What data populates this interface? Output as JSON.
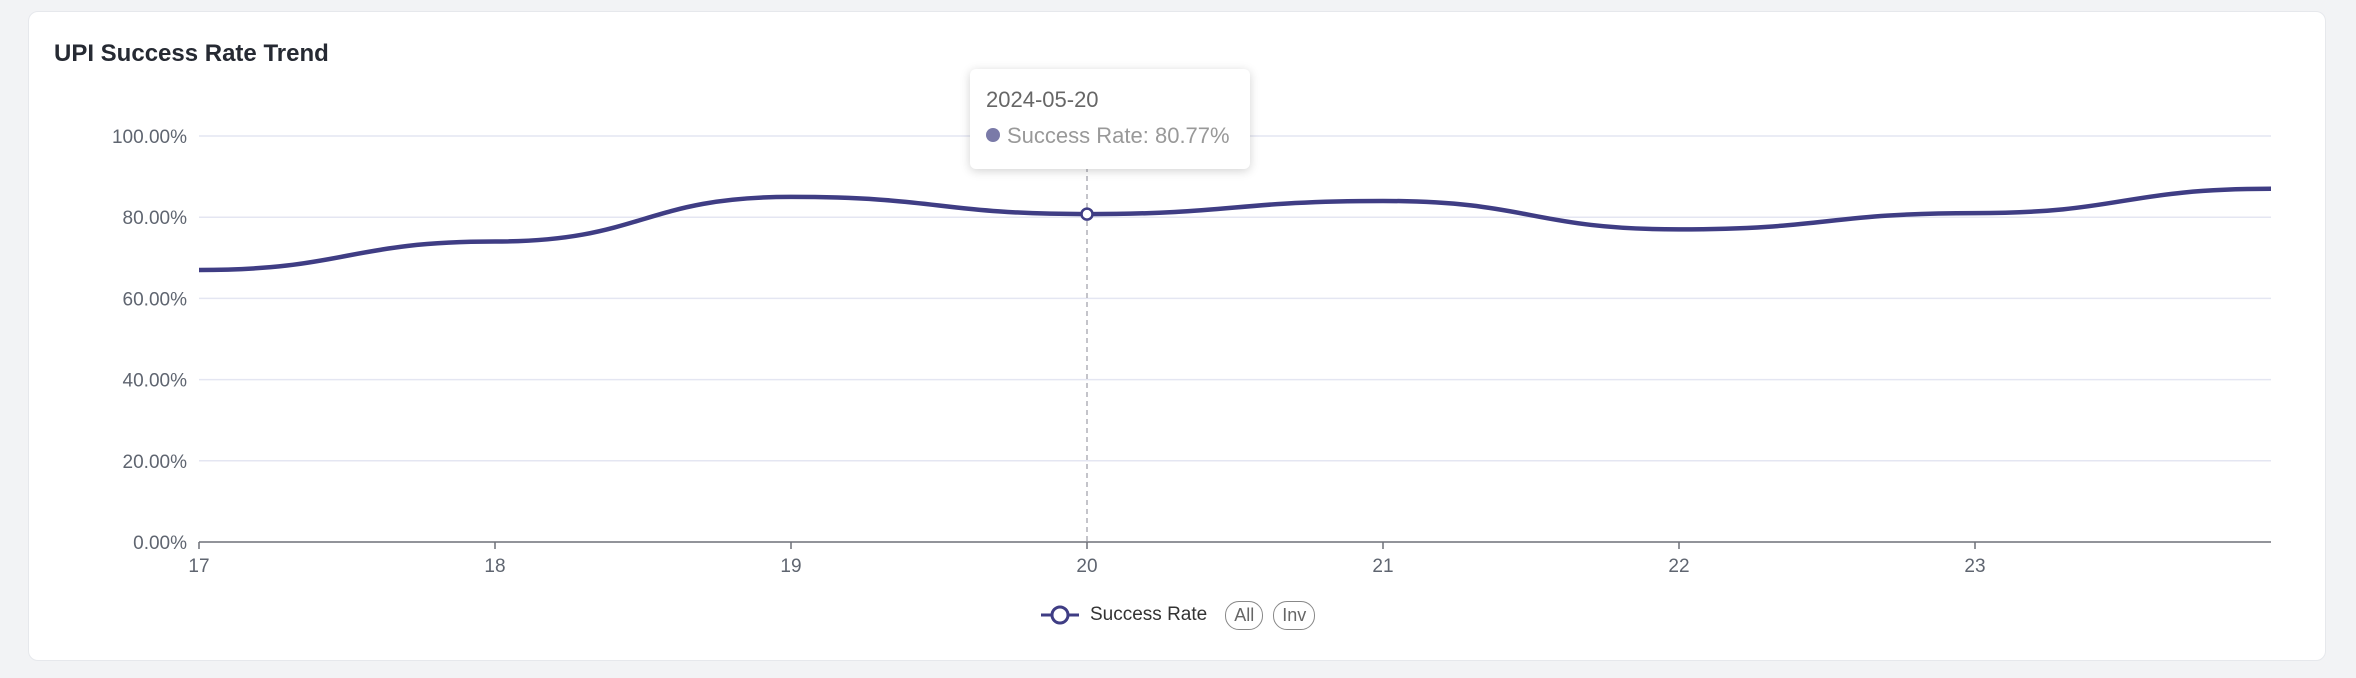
{
  "card": {
    "title": "UPI Success Rate Trend"
  },
  "tooltip": {
    "date": "2024-05-20",
    "series_name": "Success Rate",
    "value_text": "80.77%"
  },
  "legend": {
    "series_label": "Success Rate",
    "all_label": "All",
    "inv_label": "Inv"
  },
  "colors": {
    "line": "#3f3d84",
    "grid": "#e4e6f2",
    "axis": "#6e7079",
    "pointer": "#b0b0b8"
  },
  "chart_data": {
    "type": "line",
    "title": "UPI Success Rate Trend",
    "x": [
      "2024-05-17",
      "2024-05-18",
      "2024-05-19",
      "2024-05-20",
      "2024-05-21",
      "2024-05-22",
      "2024-05-23",
      "2024-05-24"
    ],
    "x_tick_labels": [
      "17",
      "18",
      "19",
      "20",
      "21",
      "22",
      "23"
    ],
    "series": [
      {
        "name": "Success Rate",
        "values": [
          67.0,
          74.0,
          85.0,
          80.77,
          84.0,
          77.0,
          81.0,
          87.0
        ]
      }
    ],
    "ylim": [
      0,
      100
    ],
    "y_tick_labels": [
      "0.00%",
      "20.00%",
      "40.00%",
      "60.00%",
      "80.00%",
      "100.00%"
    ],
    "grid": true,
    "legend_position": "bottom-center",
    "highlighted_x": "2024-05-20"
  }
}
